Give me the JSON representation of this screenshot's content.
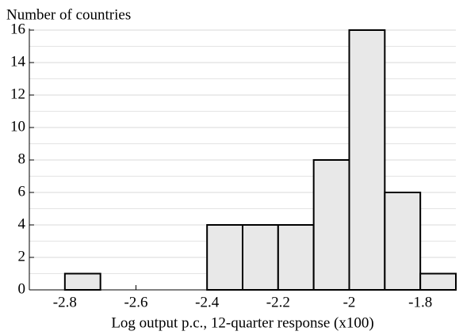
{
  "chart_data": {
    "type": "histogram",
    "ylabel": "Number of countries",
    "xlabel": "Log output p.c., 12-quarter response (x100)",
    "bins": [
      -2.8,
      -2.7,
      -2.6,
      -2.5,
      -2.4,
      -2.3,
      -2.2,
      -2.1,
      -2.0,
      -1.9,
      -1.8,
      -1.7
    ],
    "values": [
      1,
      0,
      0,
      0,
      4,
      4,
      4,
      8,
      16,
      6,
      1
    ],
    "color": "#e8e8e8",
    "xlim": [
      -2.9,
      -1.7
    ],
    "xticks": [
      -2.8,
      -2.6,
      -2.4,
      -2.2,
      -2,
      -1.8
    ],
    "ylim": [
      0,
      16
    ],
    "yticks": [
      0,
      2,
      4,
      6,
      8,
      10,
      12,
      14,
      16
    ],
    "y_minor_ticks": [
      1,
      3,
      5,
      7,
      9,
      11,
      13,
      15
    ],
    "grid": true
  }
}
